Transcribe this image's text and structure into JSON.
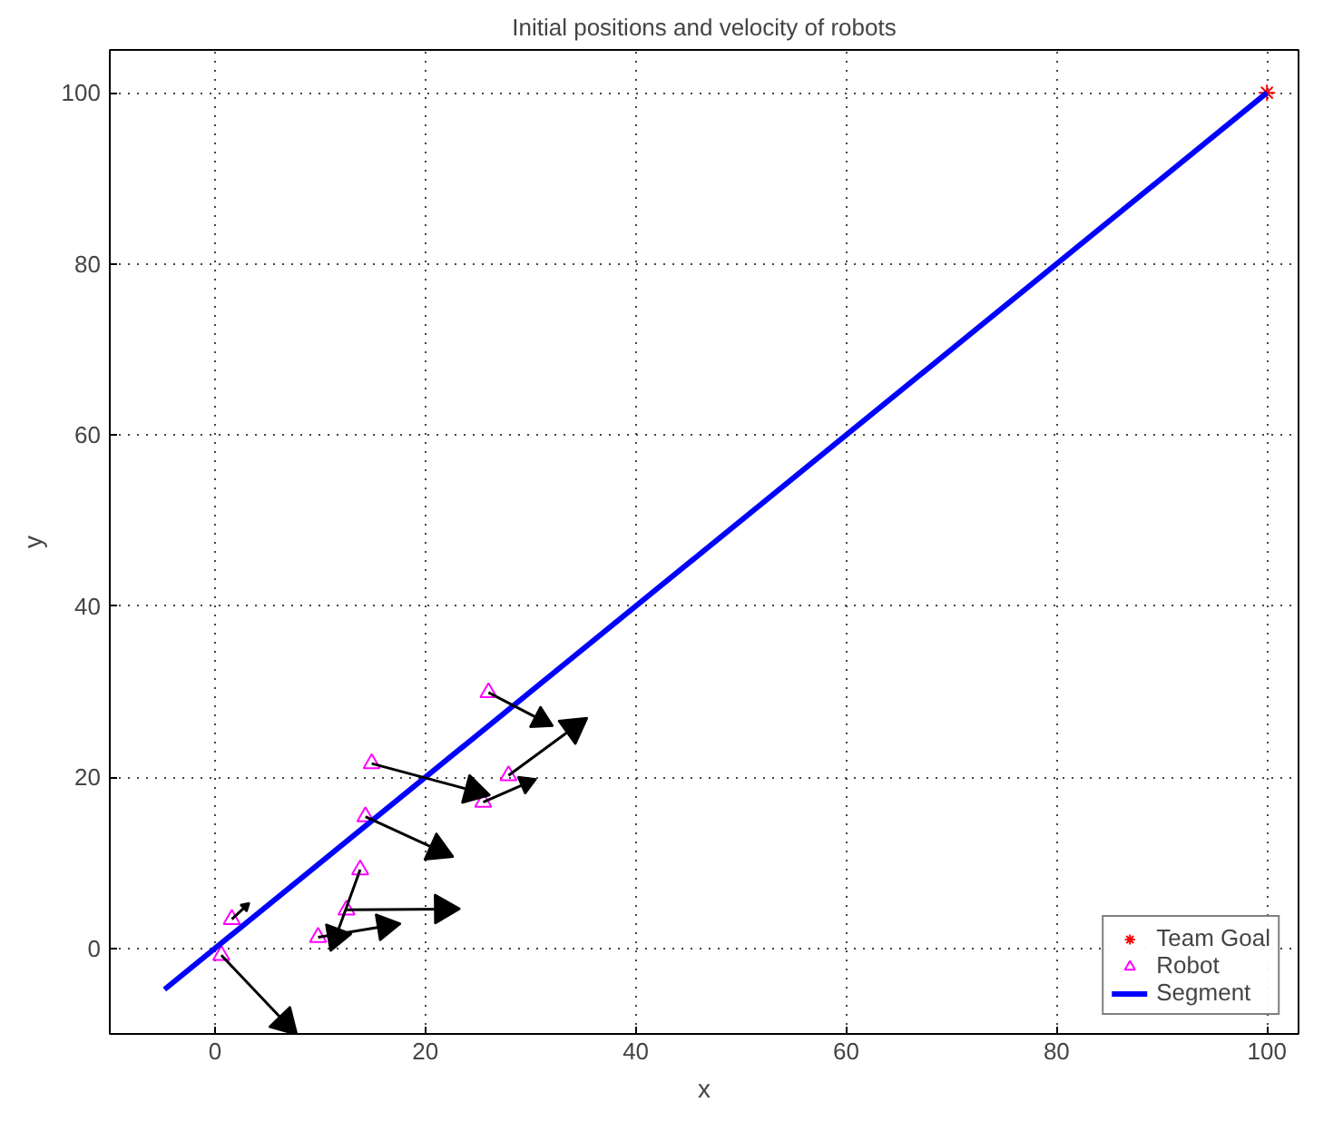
{
  "chart_data": {
    "type": "line",
    "title": "Initial positions and velocity of robots",
    "xlabel": "x",
    "ylabel": "y",
    "xlim": [
      -10,
      103
    ],
    "ylim": [
      -10,
      105
    ],
    "xticks": [
      0,
      20,
      40,
      60,
      80,
      100
    ],
    "yticks": [
      0,
      20,
      40,
      60,
      80,
      100
    ],
    "grid": true,
    "legend": "bottom right",
    "series": [
      {
        "name": "Team Goal",
        "type": "scatter",
        "marker": "cross",
        "color": "#ff0000",
        "x": [
          100
        ],
        "values": [
          100
        ]
      },
      {
        "name": "Robot",
        "type": "scatter",
        "marker": "triangle",
        "color": "#ff00ff",
        "x": [
          26.0,
          14.9,
          27.9,
          25.5,
          14.3,
          13.8,
          12.5,
          9.8,
          1.6,
          0.6
        ],
        "values": [
          29.9,
          21.6,
          20.2,
          17.1,
          15.4,
          9.2,
          4.5,
          1.3,
          3.4,
          -0.8
        ]
      },
      {
        "name": "Segment",
        "line_style": "solid",
        "color": "#0000ff",
        "x": [
          -4.8,
          100
        ],
        "values": [
          -4.8,
          100
        ]
      },
      {
        "type": "line",
        "marker": "triangle",
        "color": "#000000",
        "x": [
          26.0,
          31.0
        ],
        "values": [
          29.9,
          26.7
        ]
      },
      {
        "type": "line",
        "marker": "triangle",
        "color": "#000000",
        "x": [
          14.9,
          24.6
        ],
        "values": [
          21.6,
          18.4
        ]
      },
      {
        "type": "line",
        "marker": "triangle",
        "color": "#000000",
        "x": [
          27.9,
          34.1
        ],
        "values": [
          20.2,
          25.8
        ]
      },
      {
        "type": "line",
        "marker": "triangle",
        "color": "#000000",
        "x": [
          25.5,
          29.6
        ],
        "values": [
          17.1,
          19.3
        ]
      },
      {
        "type": "line",
        "marker": "triangle",
        "color": "#000000",
        "x": [
          14.3,
          21.2
        ],
        "values": [
          15.4,
          11.5
        ]
      },
      {
        "type": "line",
        "marker": "triangle",
        "color": "#000000",
        "x": [
          13.8,
          11.5
        ],
        "values": [
          9.2,
          1.4
        ]
      },
      {
        "type": "line",
        "marker": "triangle",
        "color": "#000000",
        "x": [
          12.5,
          21.7
        ],
        "values": [
          4.5,
          4.6
        ]
      },
      {
        "type": "line",
        "marker": "triangle",
        "color": "#000000",
        "x": [
          9.8,
          16.2
        ],
        "values": [
          1.3,
          2.6
        ]
      },
      {
        "type": "line",
        "marker": "triangle",
        "color": "#000000",
        "x": [
          1.6,
          2.9
        ],
        "values": [
          3.4,
          4.9
        ]
      },
      {
        "type": "line",
        "marker": "triangle",
        "color": "#000000",
        "x": [
          0.6,
          6.7
        ],
        "values": [
          -0.8,
          -8.7
        ]
      }
    ]
  }
}
